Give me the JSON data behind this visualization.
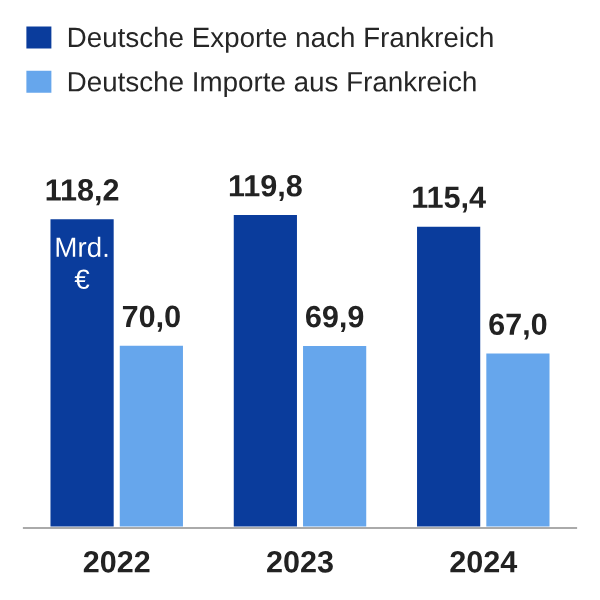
{
  "chart_data": {
    "type": "bar",
    "categories": [
      "2022",
      "2023",
      "2024"
    ],
    "series": [
      {
        "name": "Deutsche Exporte nach Frankreich",
        "color": "#0a3c9c",
        "values": [
          118.2,
          119.8,
          115.4
        ],
        "value_labels": [
          "118,2",
          "119,8",
          "115,4"
        ]
      },
      {
        "name": "Deutsche Importe aus Frankreich",
        "color": "#66a6ec",
        "values": [
          70.0,
          69.9,
          67.0
        ],
        "value_labels": [
          "70,0",
          "69,9",
          "67,0"
        ]
      }
    ],
    "annotations": [
      {
        "text": "Mrd. €",
        "x": "2022",
        "y": 100
      }
    ],
    "legend": "top left",
    "grid": false
  }
}
